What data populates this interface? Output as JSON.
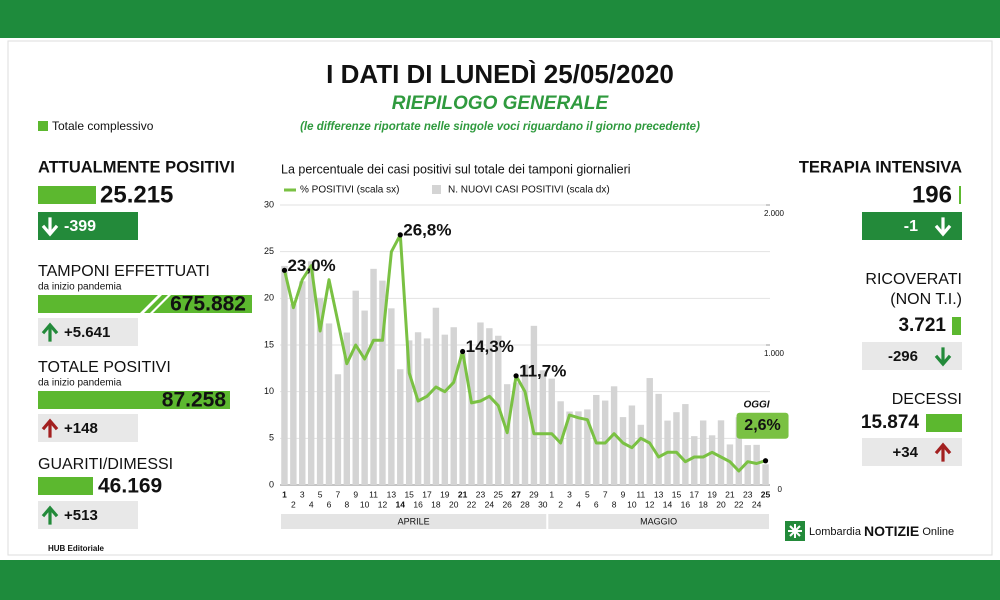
{
  "header": {
    "title": "I DATI DI LUNEDÌ 25/05/2020",
    "subtitle": "RIEPILOGO GENERALE",
    "note": "(le differenze riportate nelle singole voci riguardano il giorno precedente)",
    "legend": "Totale complessivo"
  },
  "panels": [
    {
      "title": "ATTUALMENTE POSITIVI",
      "total": "25.215",
      "change": "-399"
    },
    {
      "title": "TAMPONI EFFETTUATI",
      "subtitle": "da inizio pandemia",
      "total": "675.882",
      "change": "+5.641"
    },
    {
      "title": "TOTALE POSITIVI",
      "subtitle": "da inizio pandemia",
      "total": "87.258",
      "change": "+148"
    },
    {
      "title": "GUARITI/DIMESSI",
      "total": "46.169",
      "change": "+513"
    },
    {
      "title": "TERAPIA INTENSIVA",
      "total": "196",
      "change": "-1"
    },
    {
      "title": "RICOVERATI",
      "subtitle": "(NON T.I.)",
      "total": "3.721",
      "change": "-296"
    },
    {
      "title": "DECESSI",
      "total": "15.874",
      "change": "+34"
    }
  ],
  "footer": {
    "credit": "HUB Editoriale",
    "brand": "Lombardia",
    "brand_bold": "NOTIZIE",
    "brand_end": "Online"
  },
  "chart_data": {
    "type": "combo",
    "title": "La percentuale dei casi positivi sul totale dei tamponi giornalieri",
    "categories": [
      "1",
      "2",
      "3",
      "4",
      "5",
      "6",
      "7",
      "8",
      "9",
      "10",
      "11",
      "12",
      "13",
      "14",
      "15",
      "16",
      "17",
      "18",
      "19",
      "20",
      "21",
      "22",
      "23",
      "24",
      "25",
      "26",
      "27",
      "28",
      "29",
      "30",
      "1",
      "2",
      "3",
      "4",
      "5",
      "6",
      "7",
      "8",
      "9",
      "10",
      "11",
      "12",
      "13",
      "14",
      "15",
      "16",
      "17",
      "18",
      "19",
      "20",
      "21",
      "22",
      "23",
      "24",
      "25"
    ],
    "months": [
      "APRILE",
      "MAGGIO"
    ],
    "annotation": "OGGI",
    "series": [
      {
        "name": "% POSITIVI (scala sx)",
        "type": "line",
        "color": "#7ac143",
        "values": [
          23.0,
          19,
          22,
          23.5,
          16.5,
          22,
          17.5,
          13,
          15,
          13.5,
          15.5,
          15.5,
          25,
          26.8,
          12,
          9,
          9.5,
          10.5,
          10,
          11,
          14.3,
          8.8,
          9,
          9.5,
          8.5,
          5.6,
          11.7,
          10,
          5.5,
          5.5,
          5.5,
          4.5,
          7.5,
          7.2,
          7,
          4.5,
          4.5,
          5.5,
          4.5,
          4,
          5,
          4.5,
          3,
          3.5,
          3.5,
          2.5,
          3,
          3,
          3.5,
          3,
          2.5,
          1.5,
          2.5,
          2.3,
          2.6
        ],
        "value_labels": [
          "23,0%",
          null,
          null,
          null,
          null,
          null,
          null,
          null,
          null,
          null,
          null,
          null,
          null,
          "26,8%",
          null,
          null,
          null,
          null,
          null,
          null,
          "14,3%",
          null,
          null,
          null,
          null,
          null,
          "11,7%",
          null,
          null,
          null,
          null,
          null,
          null,
          null,
          null,
          null,
          null,
          null,
          null,
          null,
          null,
          null,
          null,
          null,
          null,
          null,
          null,
          null,
          null,
          null,
          null,
          null,
          null,
          null,
          "2,6%"
        ]
      },
      {
        "name": "N. NUOVI CASI POSITIVI (scala dx)",
        "type": "bar",
        "axis": "y2",
        "color": "#d4d4d4",
        "values": [
          1565,
          1292,
          1455,
          1598,
          1337,
          1154,
          791,
          1089,
          1388,
          1246,
          1544,
          1460,
          1262,
          827,
          1033,
          1091,
          1047,
          1266,
          1074,
          1127,
          941,
          968,
          1161,
          1120,
          1066,
          720,
          732,
          860,
          1137,
          819,
          760,
          598,
          525,
          526,
          540,
          643,
          603,
          705,
          485,
          568,
          430,
          764,
          651,
          460,
          520,
          578,
          349,
          461,
          355,
          462,
          290,
          484,
          285,
          287,
          148
        ]
      }
    ],
    "ylim": [
      0,
      30
    ],
    "yticks": [
      0,
      5,
      10,
      15,
      20,
      25,
      30
    ],
    "y2lim": [
      0,
      2000
    ],
    "y2ticks": [
      0,
      {
        "value": 1000,
        "label": "1.000"
      },
      {
        "value": 2000,
        "label": "2.000"
      }
    ],
    "grid": true
  }
}
